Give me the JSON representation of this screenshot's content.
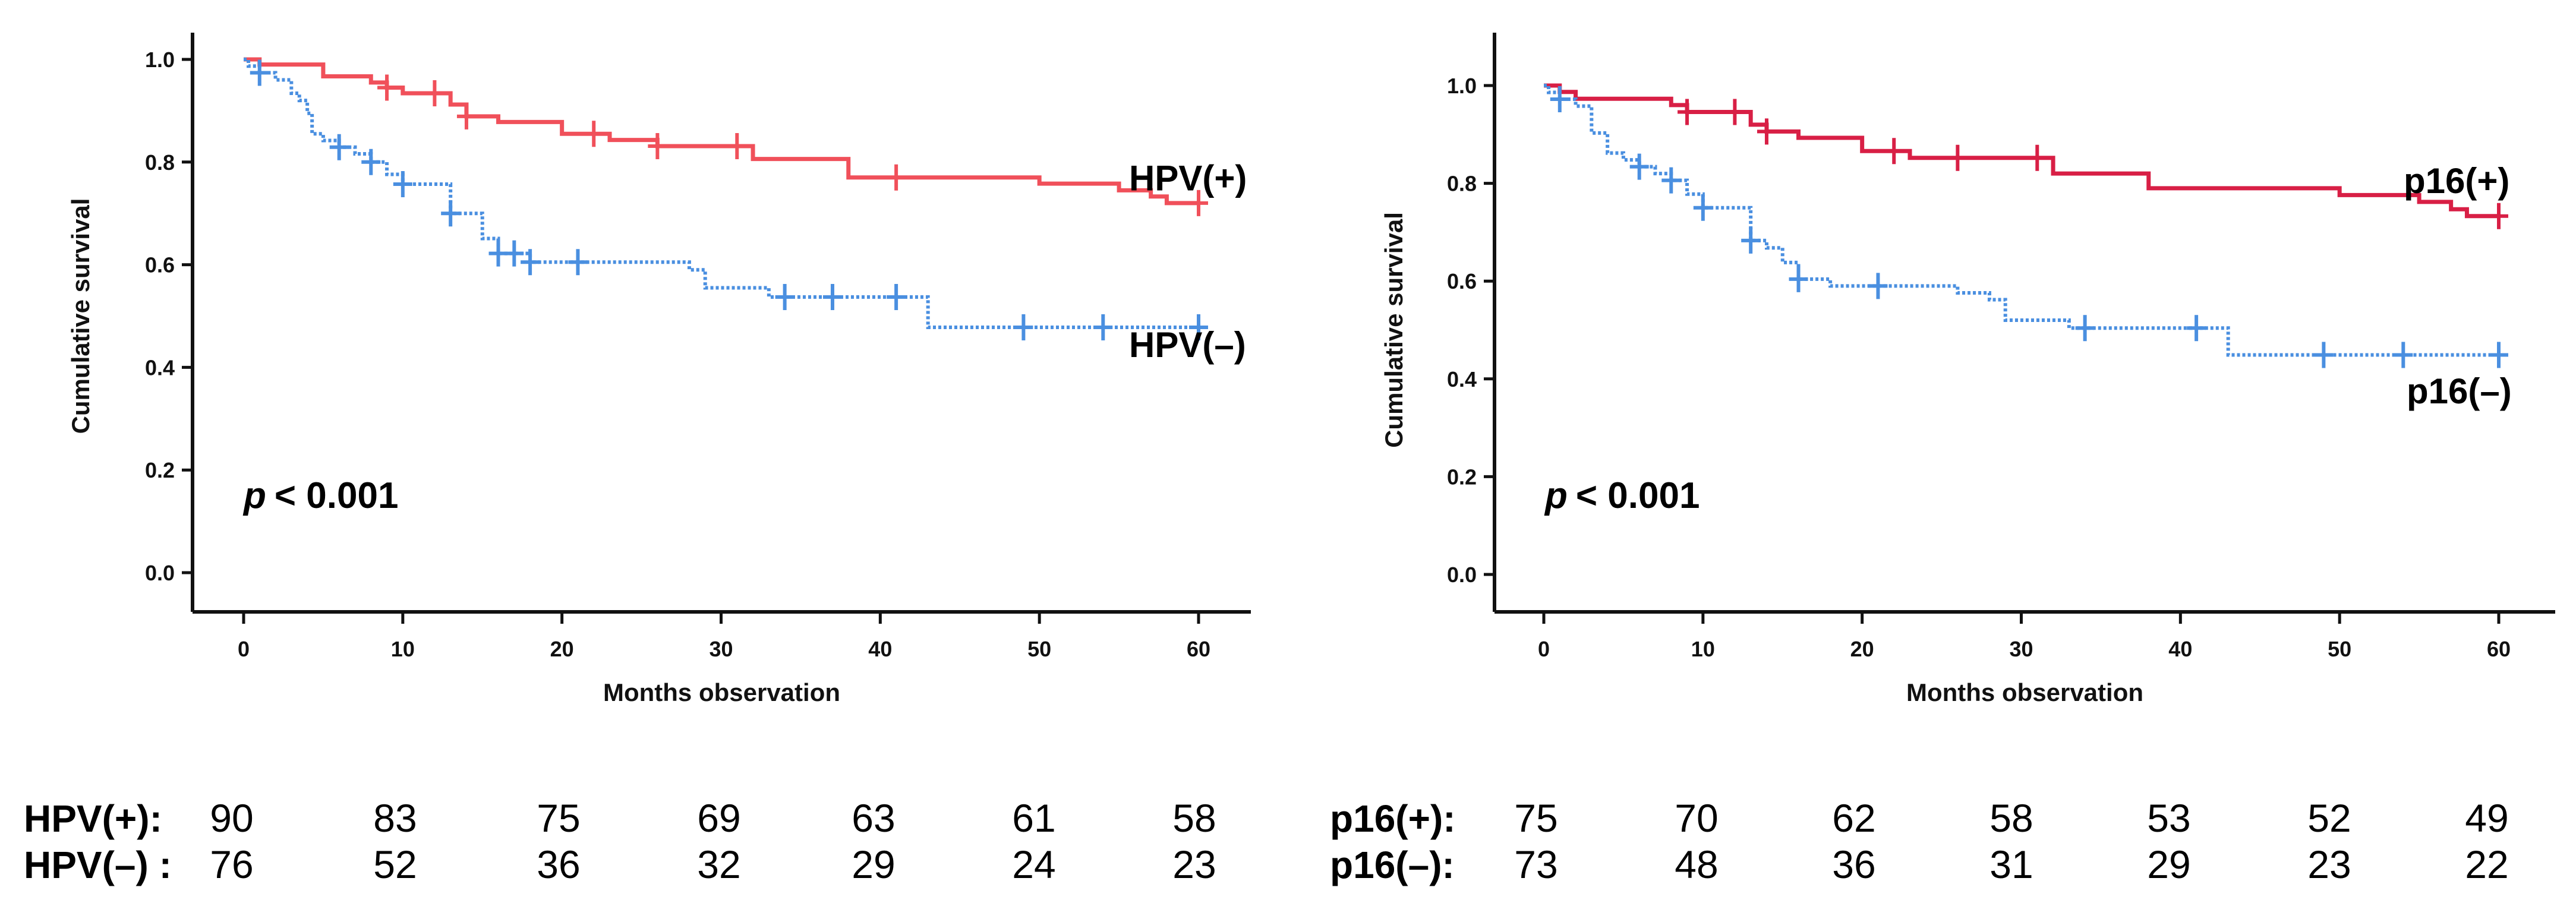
{
  "chart_data": [
    {
      "type": "line",
      "subtype": "kaplan-meier",
      "xlabel": "Months observation",
      "ylabel": "Cumulative survival",
      "xlim": [
        0,
        60
      ],
      "ylim": [
        0,
        1.0
      ],
      "xticks": [
        "0",
        "10",
        "20",
        "30",
        "40",
        "50",
        "60"
      ],
      "yticks": [
        "0.0",
        "0.2",
        "0.4",
        "0.6",
        "0.8",
        "1.0"
      ],
      "annotation": {
        "p_symbol": "p",
        "p_text": "< 0.001"
      },
      "series": [
        {
          "name": "HPV(+)",
          "color": "#f0505a",
          "style": "solid",
          "steps": [
            [
              0,
              1.0
            ],
            [
              1,
              0.99
            ],
            [
              5,
              0.967
            ],
            [
              8,
              0.955
            ],
            [
              9,
              0.945
            ],
            [
              10,
              0.934
            ],
            [
              13,
              0.912
            ],
            [
              14,
              0.889
            ],
            [
              16,
              0.878
            ],
            [
              20,
              0.855
            ],
            [
              23,
              0.843
            ],
            [
              26,
              0.831
            ],
            [
              32,
              0.806
            ],
            [
              38,
              0.77
            ],
            [
              50,
              0.758
            ],
            [
              55,
              0.745
            ],
            [
              57,
              0.733
            ],
            [
              58,
              0.72
            ],
            [
              60,
              0.72
            ]
          ],
          "censored": [
            9,
            12,
            14,
            22,
            26,
            31,
            41,
            60
          ]
        },
        {
          "name": "HPV(–)",
          "color": "#4a8fe0",
          "style": "dotted",
          "steps": [
            [
              0,
              1.0
            ],
            [
              0.3,
              0.987
            ],
            [
              1,
              0.974
            ],
            [
              2,
              0.96
            ],
            [
              3,
              0.934
            ],
            [
              3.5,
              0.92
            ],
            [
              4,
              0.895
            ],
            [
              4.3,
              0.855
            ],
            [
              5,
              0.842
            ],
            [
              6,
              0.829
            ],
            [
              7,
              0.816
            ],
            [
              8,
              0.8
            ],
            [
              9,
              0.776
            ],
            [
              10,
              0.757
            ],
            [
              13,
              0.7
            ],
            [
              15,
              0.651
            ],
            [
              16,
              0.622
            ],
            [
              18,
              0.605
            ],
            [
              28,
              0.59
            ],
            [
              29,
              0.555
            ],
            [
              33,
              0.537
            ],
            [
              43,
              0.478
            ],
            [
              60,
              0.478
            ]
          ],
          "censored": [
            1,
            6,
            8,
            10,
            13,
            16,
            17,
            18,
            21,
            34,
            37,
            41,
            49,
            54,
            60
          ]
        }
      ],
      "risk_table": {
        "rows": [
          {
            "label": "HPV(+):",
            "values": [
              "90",
              "83",
              "75",
              "69",
              "63",
              "61",
              "58"
            ]
          },
          {
            "label": "HPV(–) :",
            "values": [
              "76",
              "52",
              "36",
              "32",
              "29",
              "24",
              "23"
            ]
          }
        ]
      }
    },
    {
      "type": "line",
      "subtype": "kaplan-meier",
      "xlabel": "Months observation",
      "ylabel": "Cumulative survival",
      "xlim": [
        0,
        60
      ],
      "ylim": [
        0,
        1.0
      ],
      "xticks": [
        "0",
        "10",
        "20",
        "30",
        "40",
        "50",
        "60"
      ],
      "yticks": [
        "0.0",
        "0.2",
        "0.4",
        "0.6",
        "0.8",
        "1.0"
      ],
      "annotation": {
        "p_symbol": "p",
        "p_text": "< 0.001"
      },
      "series": [
        {
          "name": "p16(+)",
          "color": "#d81f45",
          "style": "solid",
          "steps": [
            [
              0,
              1.0
            ],
            [
              1,
              0.987
            ],
            [
              2,
              0.973
            ],
            [
              8,
              0.96
            ],
            [
              9,
              0.946
            ],
            [
              13,
              0.92
            ],
            [
              14,
              0.906
            ],
            [
              16,
              0.893
            ],
            [
              20,
              0.866
            ],
            [
              23,
              0.852
            ],
            [
              32,
              0.82
            ],
            [
              38,
              0.79
            ],
            [
              50,
              0.776
            ],
            [
              55,
              0.762
            ],
            [
              57,
              0.747
            ],
            [
              58,
              0.733
            ],
            [
              60,
              0.733
            ]
          ],
          "censored": [
            9,
            12,
            14,
            22,
            26,
            31,
            60
          ]
        },
        {
          "name": "p16(–)",
          "color": "#4a8fe0",
          "style": "dotted",
          "steps": [
            [
              0,
              1.0
            ],
            [
              0.3,
              0.986
            ],
            [
              1,
              0.972
            ],
            [
              2,
              0.958
            ],
            [
              3,
              0.903
            ],
            [
              4,
              0.862
            ],
            [
              5,
              0.848
            ],
            [
              6,
              0.834
            ],
            [
              7,
              0.82
            ],
            [
              8,
              0.806
            ],
            [
              9,
              0.778
            ],
            [
              10,
              0.75
            ],
            [
              13,
              0.683
            ],
            [
              14,
              0.668
            ],
            [
              15,
              0.638
            ],
            [
              16,
              0.604
            ],
            [
              18,
              0.59
            ],
            [
              26,
              0.576
            ],
            [
              28,
              0.562
            ],
            [
              29,
              0.52
            ],
            [
              33,
              0.504
            ],
            [
              43,
              0.449
            ],
            [
              60,
              0.449
            ]
          ],
          "censored": [
            1,
            6,
            8,
            10,
            13,
            16,
            21,
            34,
            41,
            49,
            54,
            60
          ]
        }
      ],
      "risk_table": {
        "rows": [
          {
            "label": "p16(+):",
            "values": [
              "75",
              "70",
              "62",
              "58",
              "53",
              "52",
              "49"
            ]
          },
          {
            "label": "p16(–):",
            "values": [
              "73",
              "48",
              "36",
              "31",
              "29",
              "23",
              "22"
            ]
          }
        ]
      }
    }
  ]
}
